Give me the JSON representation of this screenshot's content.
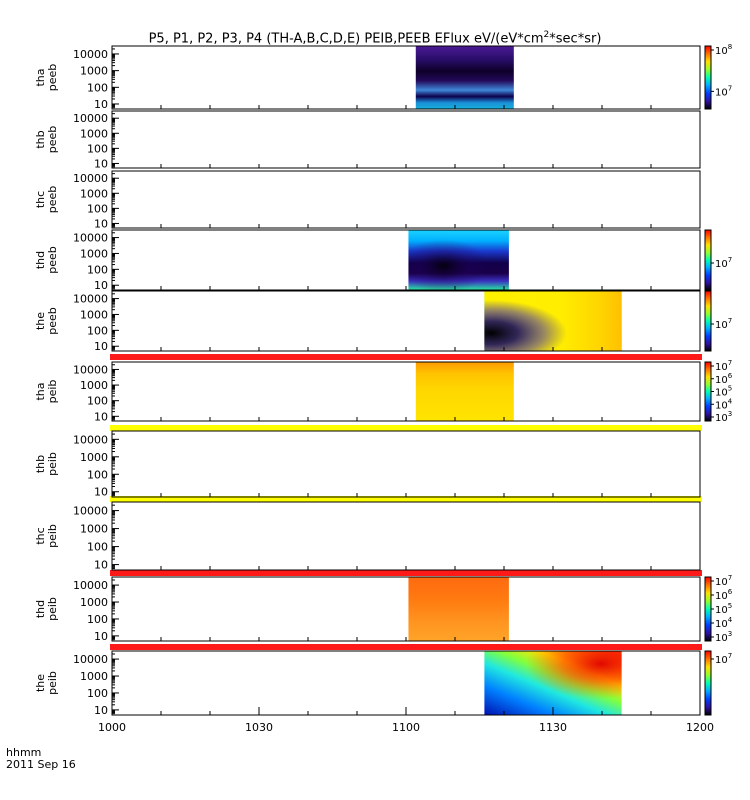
{
  "figure": {
    "title": "P5, P1, P2, P3, P4 (TH-A,B,C,D,E) PEIB,PEEB EFlux eV/(eV*cm",
    "title_sup": "2",
    "title_tail": "*sec*sr)",
    "time_label": "hhmm",
    "date_label": "2011 Sep 16"
  },
  "chart_data": {
    "type": "heatmap",
    "x_tick_labels": [
      "1000",
      "1030",
      "1100",
      "1130",
      "1200"
    ],
    "x_ticks_minutes": [
      0,
      30,
      60,
      90,
      120
    ],
    "x_range_minutes": [
      0,
      120
    ],
    "y_scale": "log",
    "y_tick_labels": [
      "10",
      "100",
      "1000",
      "10000"
    ],
    "y_range": [
      5,
      30000
    ],
    "panels": [
      {
        "label": [
          "tha",
          "peeb"
        ],
        "data_start": 62,
        "data_end": 82,
        "style": "dark-blue",
        "colorbar": {
          "type": "wide",
          "tick_labels": [
            "10",
            "10"
          ],
          "tick_sups": [
            "8",
            "7"
          ]
        }
      },
      {
        "label": [
          "thb",
          "peeb"
        ],
        "data_start": null,
        "data_end": null,
        "style": "none",
        "colorbar": null
      },
      {
        "label": [
          "thc",
          "peeb"
        ],
        "data_start": null,
        "data_end": null,
        "style": "none",
        "colorbar": null
      },
      {
        "label": [
          "thd",
          "peeb"
        ],
        "data_start": 60.5,
        "data_end": 81,
        "style": "dark-green",
        "colorbar": {
          "type": "wide",
          "tick_labels": [
            "10"
          ],
          "tick_sups": [
            "7"
          ]
        }
      },
      {
        "label": [
          "the",
          "peeb"
        ],
        "data_start": 76,
        "data_end": 104,
        "style": "rainbow",
        "colorbar": {
          "type": "wide",
          "tick_labels": [
            "10"
          ],
          "tick_sups": [
            "7"
          ]
        }
      },
      {
        "label": [
          "tha",
          "peib"
        ],
        "data_start": 62,
        "data_end": 82,
        "style": "yellow",
        "colorbar": {
          "type": "narrow",
          "tick_labels": [
            "10",
            "10",
            "10",
            "10",
            "10"
          ],
          "tick_sups": [
            "7",
            "6",
            "5",
            "4",
            "3"
          ]
        }
      },
      {
        "label": [
          "thb",
          "peib"
        ],
        "data_start": null,
        "data_end": null,
        "style": "none",
        "colorbar": null
      },
      {
        "label": [
          "thc",
          "peib"
        ],
        "data_start": null,
        "data_end": null,
        "style": "none",
        "colorbar": null
      },
      {
        "label": [
          "thd",
          "peib"
        ],
        "data_start": 60.5,
        "data_end": 81,
        "style": "orange",
        "colorbar": {
          "type": "narrow",
          "tick_labels": [
            "10",
            "10",
            "10",
            "10",
            "10"
          ],
          "tick_sups": [
            "7",
            "6",
            "5",
            "4",
            "3"
          ]
        }
      },
      {
        "label": [
          "the",
          "peib"
        ],
        "data_start": 76,
        "data_end": 104,
        "style": "rainbow-ion",
        "colorbar": {
          "type": "narrow",
          "tick_labels": [
            "10"
          ],
          "tick_sups": [
            "7"
          ]
        }
      }
    ],
    "separator_bars": [
      {
        "after_panel": 4,
        "color": "#ff1a1a"
      },
      {
        "after_panel": 5,
        "color": "#ffff00"
      },
      {
        "after_panel": 6,
        "color": "#ffff00"
      },
      {
        "after_panel": 7,
        "color": "#ff1a1a"
      },
      {
        "after_panel": 8,
        "color": "#ff1a1a"
      }
    ]
  }
}
